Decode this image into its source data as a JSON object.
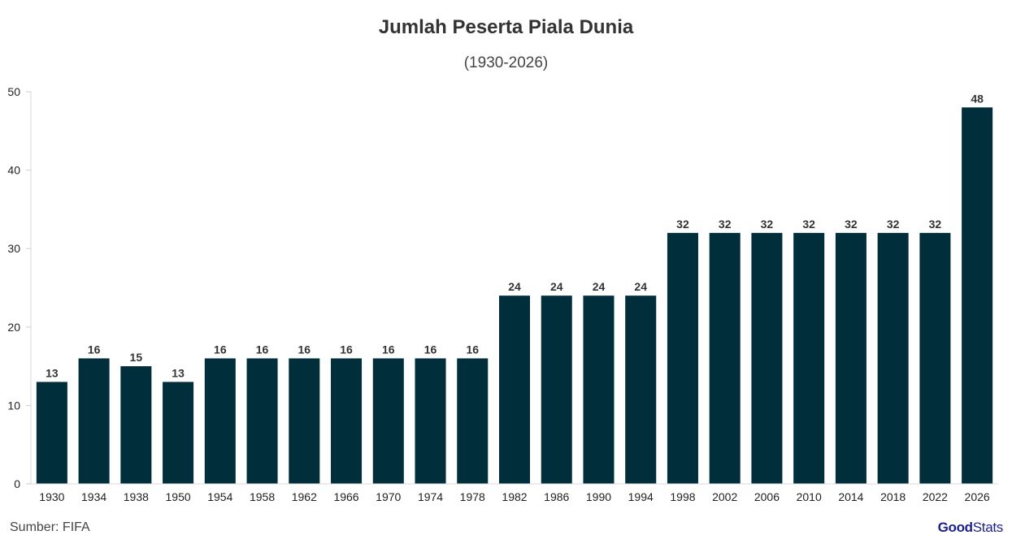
{
  "chart_data": {
    "type": "bar",
    "title": "Jumlah Peserta Piala Dunia",
    "subtitle": "(1930-2026)",
    "xlabel": "",
    "ylabel": "",
    "categories": [
      "1930",
      "1934",
      "1938",
      "1950",
      "1954",
      "1958",
      "1962",
      "1966",
      "1970",
      "1974",
      "1978",
      "1982",
      "1986",
      "1990",
      "1994",
      "1998",
      "2002",
      "2006",
      "2010",
      "2014",
      "2018",
      "2022",
      "2026"
    ],
    "values": [
      13,
      16,
      15,
      13,
      16,
      16,
      16,
      16,
      16,
      16,
      16,
      24,
      24,
      24,
      24,
      32,
      32,
      32,
      32,
      32,
      32,
      32,
      48
    ],
    "ylim": [
      0,
      50
    ],
    "yticks": [
      "0",
      "10",
      "20",
      "30",
      "40",
      "50"
    ],
    "grid": false,
    "bar_color": "#002e3b",
    "data_labels": true
  },
  "footer": {
    "source": "Sumber: FIFA",
    "logo_good": "Good",
    "logo_stats": "Stats"
  }
}
